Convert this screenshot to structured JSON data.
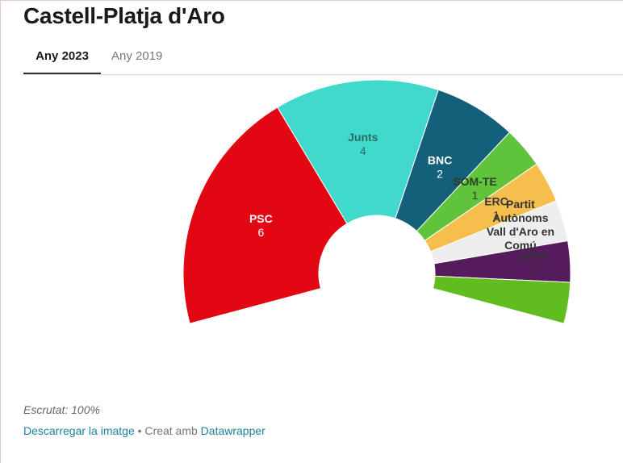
{
  "title": "Castell-Platja d'Aro",
  "tabs": [
    {
      "label": "Any 2023",
      "active": true
    },
    {
      "label": "Any 2019",
      "active": false
    }
  ],
  "footer": {
    "note": "Escrutat: 100%",
    "download_label": "Descarregar la imatge",
    "separator": "•",
    "created_with": "Creat amb",
    "tool_label": "Datawrapper"
  },
  "colors": {
    "link": "#1d81a2"
  },
  "chart_data": {
    "type": "pie",
    "subtype": "parliament-arc",
    "total_seats": 17,
    "series": [
      {
        "name": "PSC",
        "value": 6,
        "color": "#e30613"
      },
      {
        "name": "Junts",
        "value": 4,
        "color": "#40d9cb"
      },
      {
        "name": "BNC",
        "value": 2,
        "color": "#145f7a"
      },
      {
        "name": "SOM-TE",
        "value": 1,
        "color": "#5fc33b"
      },
      {
        "name": "ERC",
        "value": 1,
        "color": "#f5be4d"
      },
      {
        "name": "Partit Autònoms Vall d'Aro en Comú",
        "value": 1,
        "color": "#eeeeee"
      },
      {
        "name": "VOX",
        "value": 1,
        "color": "#561b5d"
      },
      {
        "name": "",
        "value": 1,
        "color": "#61bd1f"
      }
    ],
    "labels": [
      {
        "lines": [
          "PSC"
        ],
        "value": "6",
        "color": "#ffffff"
      },
      {
        "lines": [
          "Junts"
        ],
        "value": "4",
        "color": "#2a6b64"
      },
      {
        "lines": [
          "BNC"
        ],
        "value": "2",
        "color": "#ffffff"
      },
      {
        "lines": [
          "SOM-TE"
        ],
        "value": "1",
        "color": "#2f3f2a"
      },
      {
        "lines": [
          "ERC"
        ],
        "value": "1",
        "color": "#3a3a3a"
      },
      {
        "lines": [
          "Partit",
          "Autònoms",
          "Vall d'Aro en",
          "Comú"
        ],
        "value": "1",
        "color": "#333333"
      },
      {
        "lines": [
          "VOX"
        ],
        "value": "1",
        "color": "#333333"
      }
    ]
  }
}
